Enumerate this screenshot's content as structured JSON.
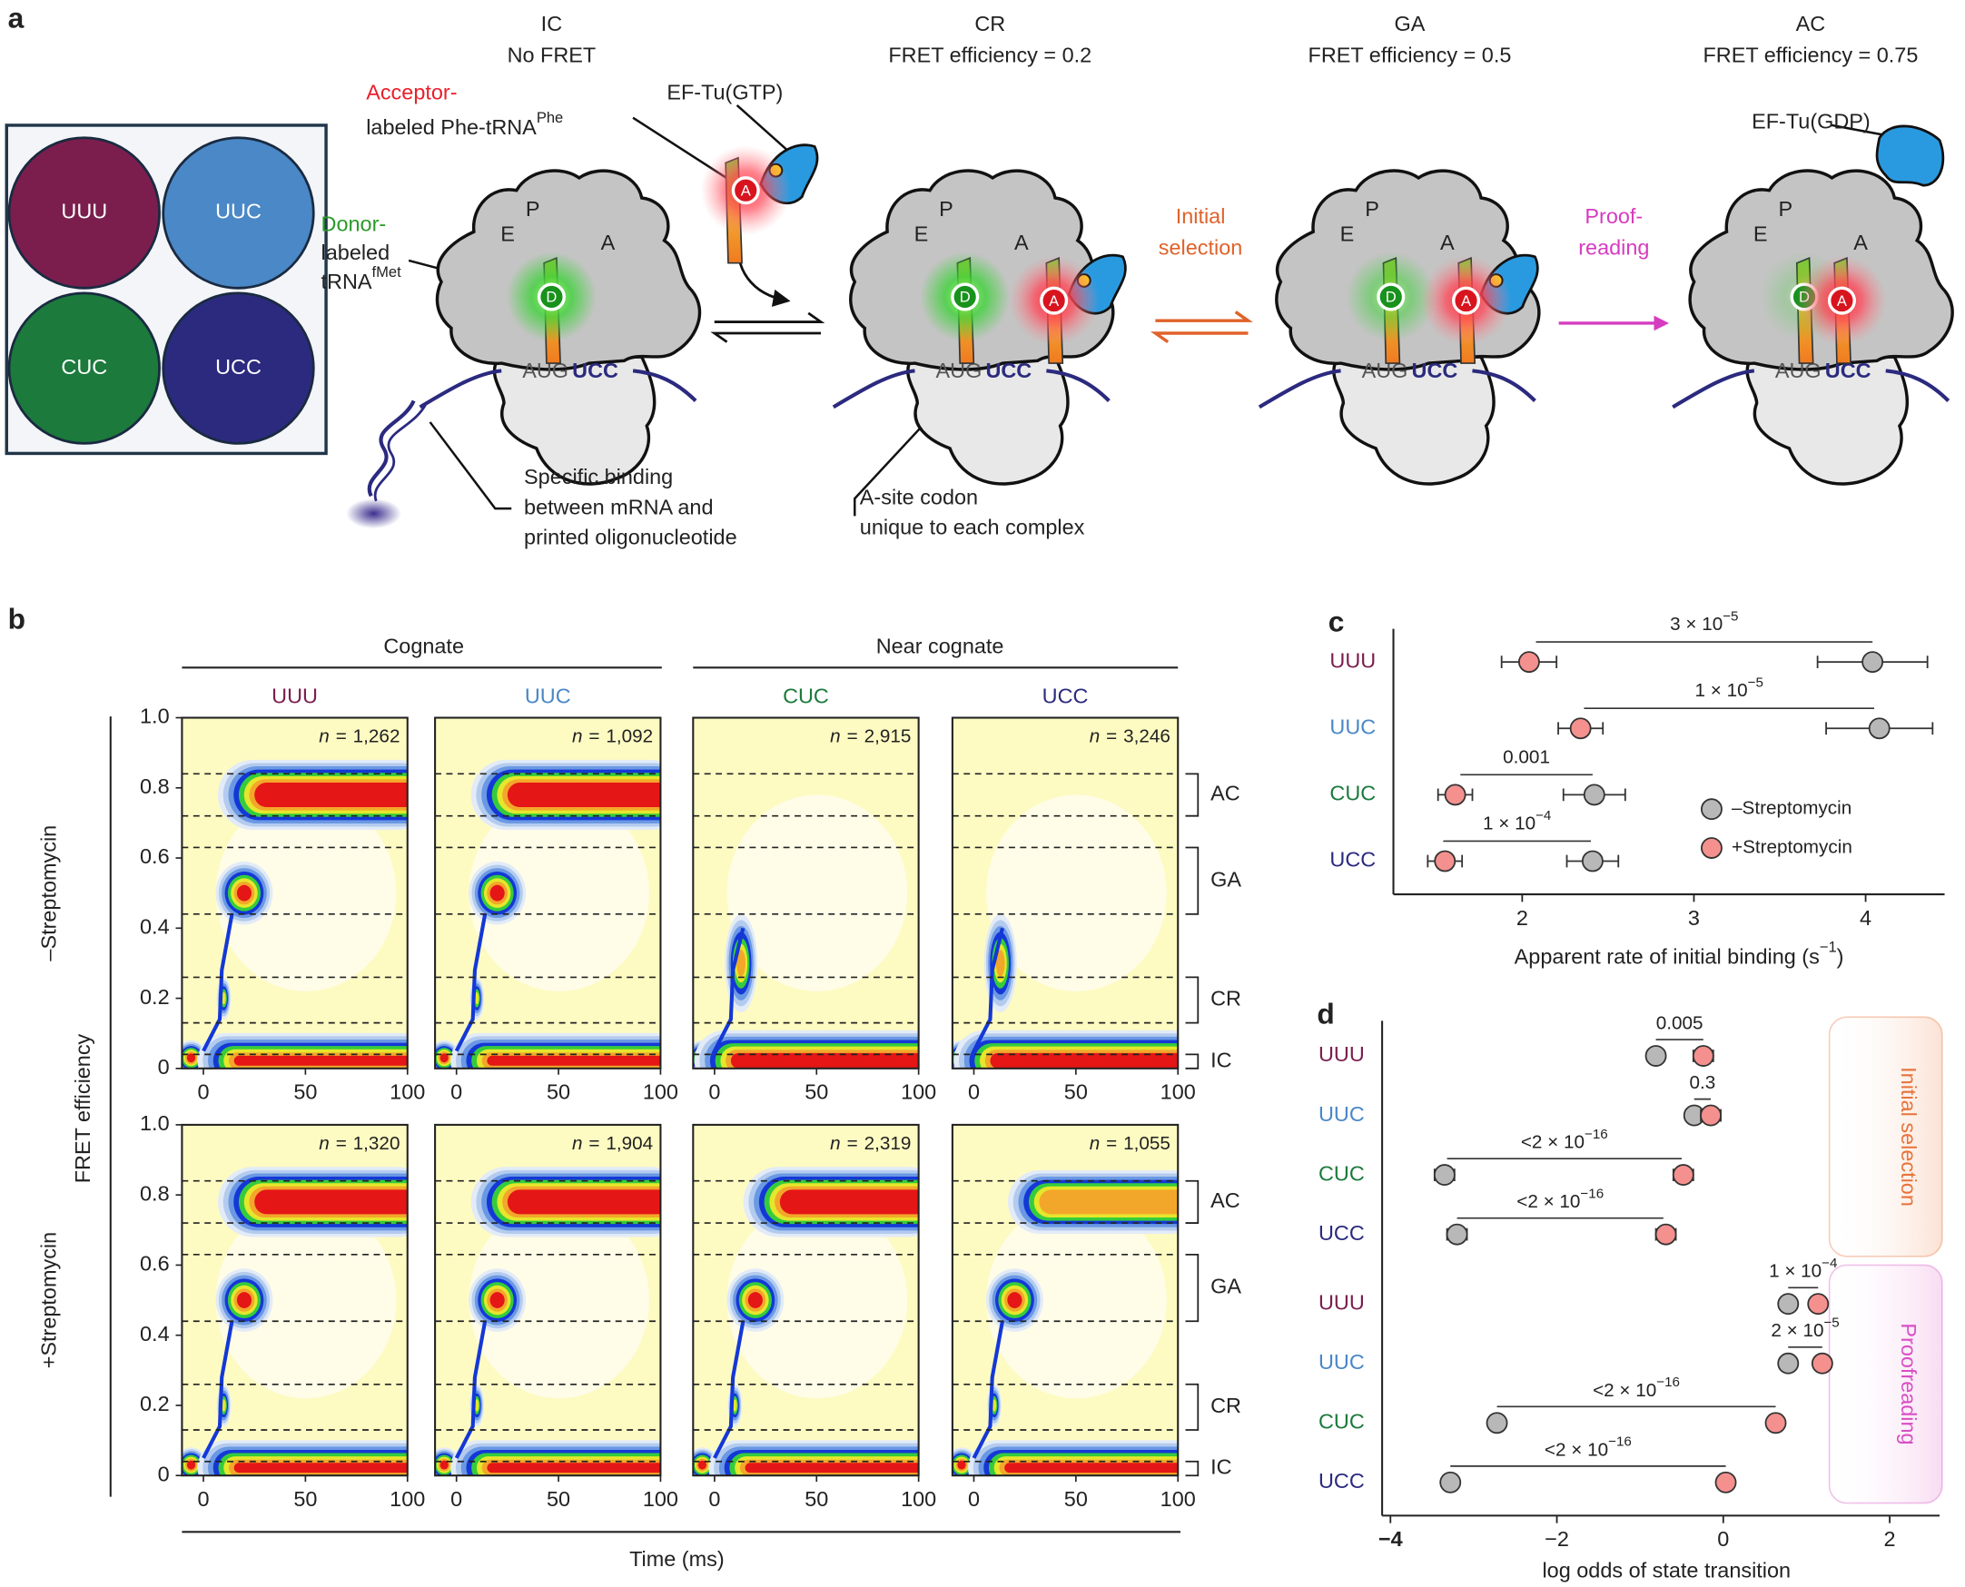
{
  "panel_a": {
    "label": "a",
    "codons": [
      {
        "name": "UUU",
        "color": "#7b1e4e"
      },
      {
        "name": "UUC",
        "color": "#4a88c7"
      },
      {
        "name": "CUC",
        "color": "#1b7a3c"
      },
      {
        "name": "UCC",
        "color": "#2b2a7f"
      }
    ],
    "states": [
      {
        "name": "IC",
        "description": "No FRET"
      },
      {
        "name": "CR",
        "description": "FRET efficiency = 0.2"
      },
      {
        "name": "GA",
        "description": "FRET efficiency = 0.5"
      },
      {
        "name": "AC",
        "description": "FRET efficiency = 0.75"
      }
    ],
    "sites": [
      "E",
      "P",
      "A"
    ],
    "donor_dye": "D",
    "acceptor_dye": "A",
    "mrna": [
      "AUG",
      "UCC"
    ],
    "acceptor_label": {
      "line1": "Acceptor-",
      "line2": "labeled Phe-tRNA",
      "sup": "Phe"
    },
    "donor_label": {
      "lines": [
        "Donor-",
        "labeled",
        "tRNA"
      ],
      "sup": "fMet"
    },
    "ef_tu_gtp": "EF-Tu(GTP)",
    "ef_tu_gdp": "EF-Tu(GDP)",
    "steps": [
      {
        "lines": [
          "Initial",
          "selection"
        ],
        "color": "#e0622a"
      },
      {
        "lines": [
          "Proof-",
          "reading"
        ],
        "color": "#d63cc0"
      }
    ],
    "binding_note": [
      "Specific binding",
      "between mRNA and",
      "printed oligonucleotide"
    ],
    "codon_note": [
      "A-site codon",
      "unique to each complex"
    ]
  },
  "panel_b": {
    "label": "b",
    "groups": [
      "Cognate",
      "Near cognate"
    ],
    "columns": [
      "UUU",
      "UUC",
      "CUC",
      "UCC"
    ],
    "column_colors": [
      "#7b1e4e",
      "#4a88c7",
      "#1b7a3c",
      "#2b2a7f"
    ],
    "rows": [
      "–Streptomycin",
      "+Streptomycin"
    ],
    "ylabel": "FRET efficiency",
    "xlabel": "Time (ms)",
    "xlim": [
      -10.5,
      100
    ],
    "xticks": [
      0,
      50,
      100
    ],
    "ylim": [
      0,
      1
    ],
    "yticks": [
      0,
      0.2,
      0.4,
      0.6,
      0.8,
      {
        "value": 1,
        "label": "1.0"
      }
    ],
    "count_symbol": "n",
    "count_equals": "=",
    "counts": [
      [
        {
          "value": 1262,
          "label": "1,262"
        },
        {
          "value": 1092,
          "label": "1,092"
        },
        {
          "value": 2915,
          "label": "2,915"
        },
        {
          "value": 3246,
          "label": "3,246"
        }
      ],
      [
        {
          "value": 1320,
          "label": "1,320"
        },
        {
          "value": 1904,
          "label": "1,904"
        },
        {
          "value": 2319,
          "label": "2,319"
        },
        {
          "value": 1055,
          "label": "1,055"
        }
      ]
    ],
    "states": [
      {
        "name": "AC",
        "range": [
          0.72,
          0.84
        ]
      },
      {
        "name": "GA",
        "range": [
          0.44,
          0.63
        ]
      },
      {
        "name": "CR",
        "range": [
          0.13,
          0.26
        ]
      },
      {
        "name": "IC",
        "range": [
          0,
          0.04
        ]
      }
    ]
  },
  "chart_data": [
    {
      "type": "dot",
      "label": "c",
      "categories": [
        "UUU",
        "UUC",
        "CUC",
        "UCC"
      ],
      "category_colors": [
        "#7b1e4e",
        "#4a88c7",
        "#1b7a3c",
        "#2b2a7f"
      ],
      "series": [
        {
          "name": "–Streptomycin",
          "color": "#b8b8b8",
          "values": [
            4.04,
            4.08,
            2.42,
            2.41
          ],
          "errors": [
            0.32,
            0.31,
            0.18,
            0.15
          ]
        },
        {
          "name": "+Streptomycin",
          "color": "#f4908e",
          "values": [
            2.04,
            2.34,
            1.61,
            1.55
          ],
          "errors": [
            0.16,
            0.13,
            0.1,
            0.1
          ]
        }
      ],
      "annotations": [
        {
          "text": "3 × 10",
          "exponent": "−5",
          "from": 2.08,
          "to": 4.04
        },
        {
          "text": "1 × 10",
          "exponent": "−5",
          "from": 2.36,
          "to": 4.05
        },
        {
          "text": "0.001",
          "from": 1.64,
          "to": 2.41
        },
        {
          "text": "1 × 10",
          "exponent": "−4",
          "from": 1.54,
          "to": 2.4
        }
      ],
      "xlabel": "Apparent rate of initial binding (s",
      "xlabel_exponent": "−1",
      "xlabel_end": ")",
      "xlim": [
        1.25,
        4.46
      ],
      "xticks": [
        2,
        3,
        4
      ],
      "legend": "lower right"
    },
    {
      "type": "dot",
      "label": "d",
      "categories": [
        "UUU",
        "UUC",
        "CUC",
        "UCC"
      ],
      "category_colors": [
        "#7b1e4e",
        "#4a88c7",
        "#1b7a3c",
        "#2b2a7f"
      ],
      "groups": [
        {
          "name": "Initial selection",
          "color": "#e8733a",
          "series": [
            {
              "color": "#b8b8b8",
              "values": [
                -0.81,
                -0.35,
                -3.35,
                -3.2
              ],
              "errors": [
                0.1,
                0.1,
                0.12,
                0.12
              ]
            },
            {
              "color": "#f4908e",
              "values": [
                -0.24,
                -0.15,
                -0.48,
                -0.69
              ],
              "errors": [
                0.12,
                0.12,
                0.12,
                0.12
              ]
            }
          ],
          "annotations": [
            {
              "text": "0.005",
              "from": -0.81,
              "to": -0.24
            },
            {
              "text": "0.3",
              "from": -0.35,
              "to": -0.15
            },
            {
              "text": "<2 × 10",
              "exponent": "−16",
              "from": -3.32,
              "to": -0.5
            },
            {
              "text": "<2 × 10",
              "exponent": "−16",
              "from": -3.2,
              "to": -0.72
            }
          ]
        },
        {
          "name": "Proofreading",
          "color": "#d84fc4",
          "series": [
            {
              "color": "#b8b8b8",
              "values": [
                0.78,
                0.78,
                -2.72,
                -3.28
              ]
            },
            {
              "color": "#f4908e",
              "values": [
                1.14,
                1.19,
                0.63,
                0.03
              ]
            }
          ],
          "annotations": [
            {
              "text": "1 × 10",
              "exponent": "−4",
              "from": 0.78,
              "to": 1.14
            },
            {
              "text": "2 × 10",
              "exponent": "−5",
              "from": 0.78,
              "to": 1.19
            },
            {
              "text": "<2 × 10",
              "exponent": "−16",
              "from": -2.72,
              "to": 0.63
            },
            {
              "text": "<2 × 10",
              "exponent": "−16",
              "from": -3.28,
              "to": 0.03
            }
          ]
        }
      ],
      "xlabel": "log odds of state transition",
      "xlim": [
        -4.1,
        2.6
      ],
      "xticks": [
        {
          "value": -4,
          "label": "−4"
        },
        {
          "value": -2,
          "label": "−2"
        },
        0,
        2
      ]
    }
  ]
}
